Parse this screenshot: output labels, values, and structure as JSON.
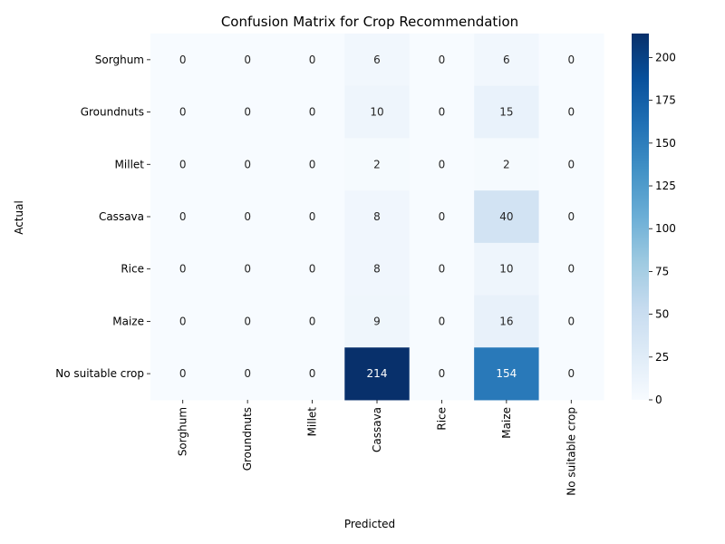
{
  "chart_data": {
    "type": "heatmap",
    "title": "Confusion Matrix for Crop Recommendation",
    "xlabel": "Predicted",
    "ylabel": "Actual",
    "row_labels": [
      "Sorghum",
      "Groundnuts",
      "Millet",
      "Cassava",
      "Rice",
      "Maize",
      "No suitable crop"
    ],
    "col_labels": [
      "Sorghum",
      "Groundnuts",
      "Millet",
      "Cassava",
      "Rice",
      "Maize",
      "No suitable crop"
    ],
    "values": [
      [
        0,
        0,
        0,
        6,
        0,
        6,
        0
      ],
      [
        0,
        0,
        0,
        10,
        0,
        15,
        0
      ],
      [
        0,
        0,
        0,
        2,
        0,
        2,
        0
      ],
      [
        0,
        0,
        0,
        8,
        0,
        40,
        0
      ],
      [
        0,
        0,
        0,
        8,
        0,
        10,
        0
      ],
      [
        0,
        0,
        0,
        9,
        0,
        16,
        0
      ],
      [
        0,
        0,
        0,
        214,
        0,
        154,
        0
      ]
    ],
    "colormap": "Blues",
    "color_range": [
      0,
      214
    ],
    "colorbar_ticks": [
      0,
      25,
      50,
      75,
      100,
      125,
      150,
      175,
      200
    ]
  }
}
